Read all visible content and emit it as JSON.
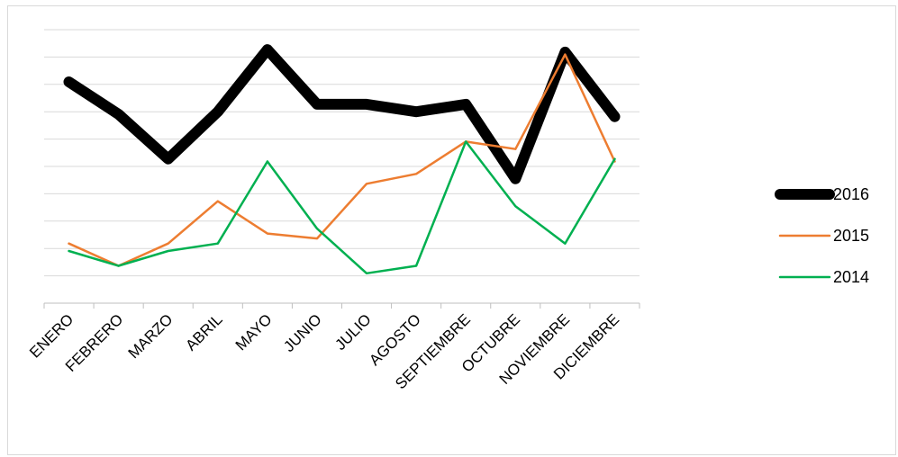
{
  "chart_data": {
    "type": "line",
    "categories": [
      "ENERO",
      "FEBRERO",
      "MARZO",
      "ABRIL",
      "MAYO",
      "JUNIO",
      "JULIO",
      "AGOSTO",
      "SEPTIEMBRE",
      "OCTUBRE",
      "NOVIEMBRE",
      "DICIEMBRE"
    ],
    "series": [
      {
        "name": "2016",
        "color": "#000000",
        "width": 12,
        "values": [
          7.9,
          6.6,
          4.8,
          6.7,
          9.2,
          7.0,
          7.0,
          6.7,
          7.0,
          4.0,
          9.1,
          6.5
        ]
      },
      {
        "name": "2015",
        "color": "#ed7d31",
        "width": 2.5,
        "values": [
          1.4,
          0.5,
          1.4,
          3.1,
          1.8,
          1.6,
          3.8,
          4.2,
          5.5,
          5.2,
          9.0,
          4.7
        ]
      },
      {
        "name": "2014",
        "color": "#00b050",
        "width": 2.5,
        "values": [
          1.1,
          0.5,
          1.1,
          1.4,
          4.7,
          2.0,
          0.2,
          0.5,
          5.5,
          2.9,
          1.4,
          4.8
        ]
      }
    ],
    "ylim": [
      -1,
      10
    ],
    "gridlines": 11,
    "grid": true,
    "y_tick_labels_visible": false,
    "legend_position": "right"
  }
}
